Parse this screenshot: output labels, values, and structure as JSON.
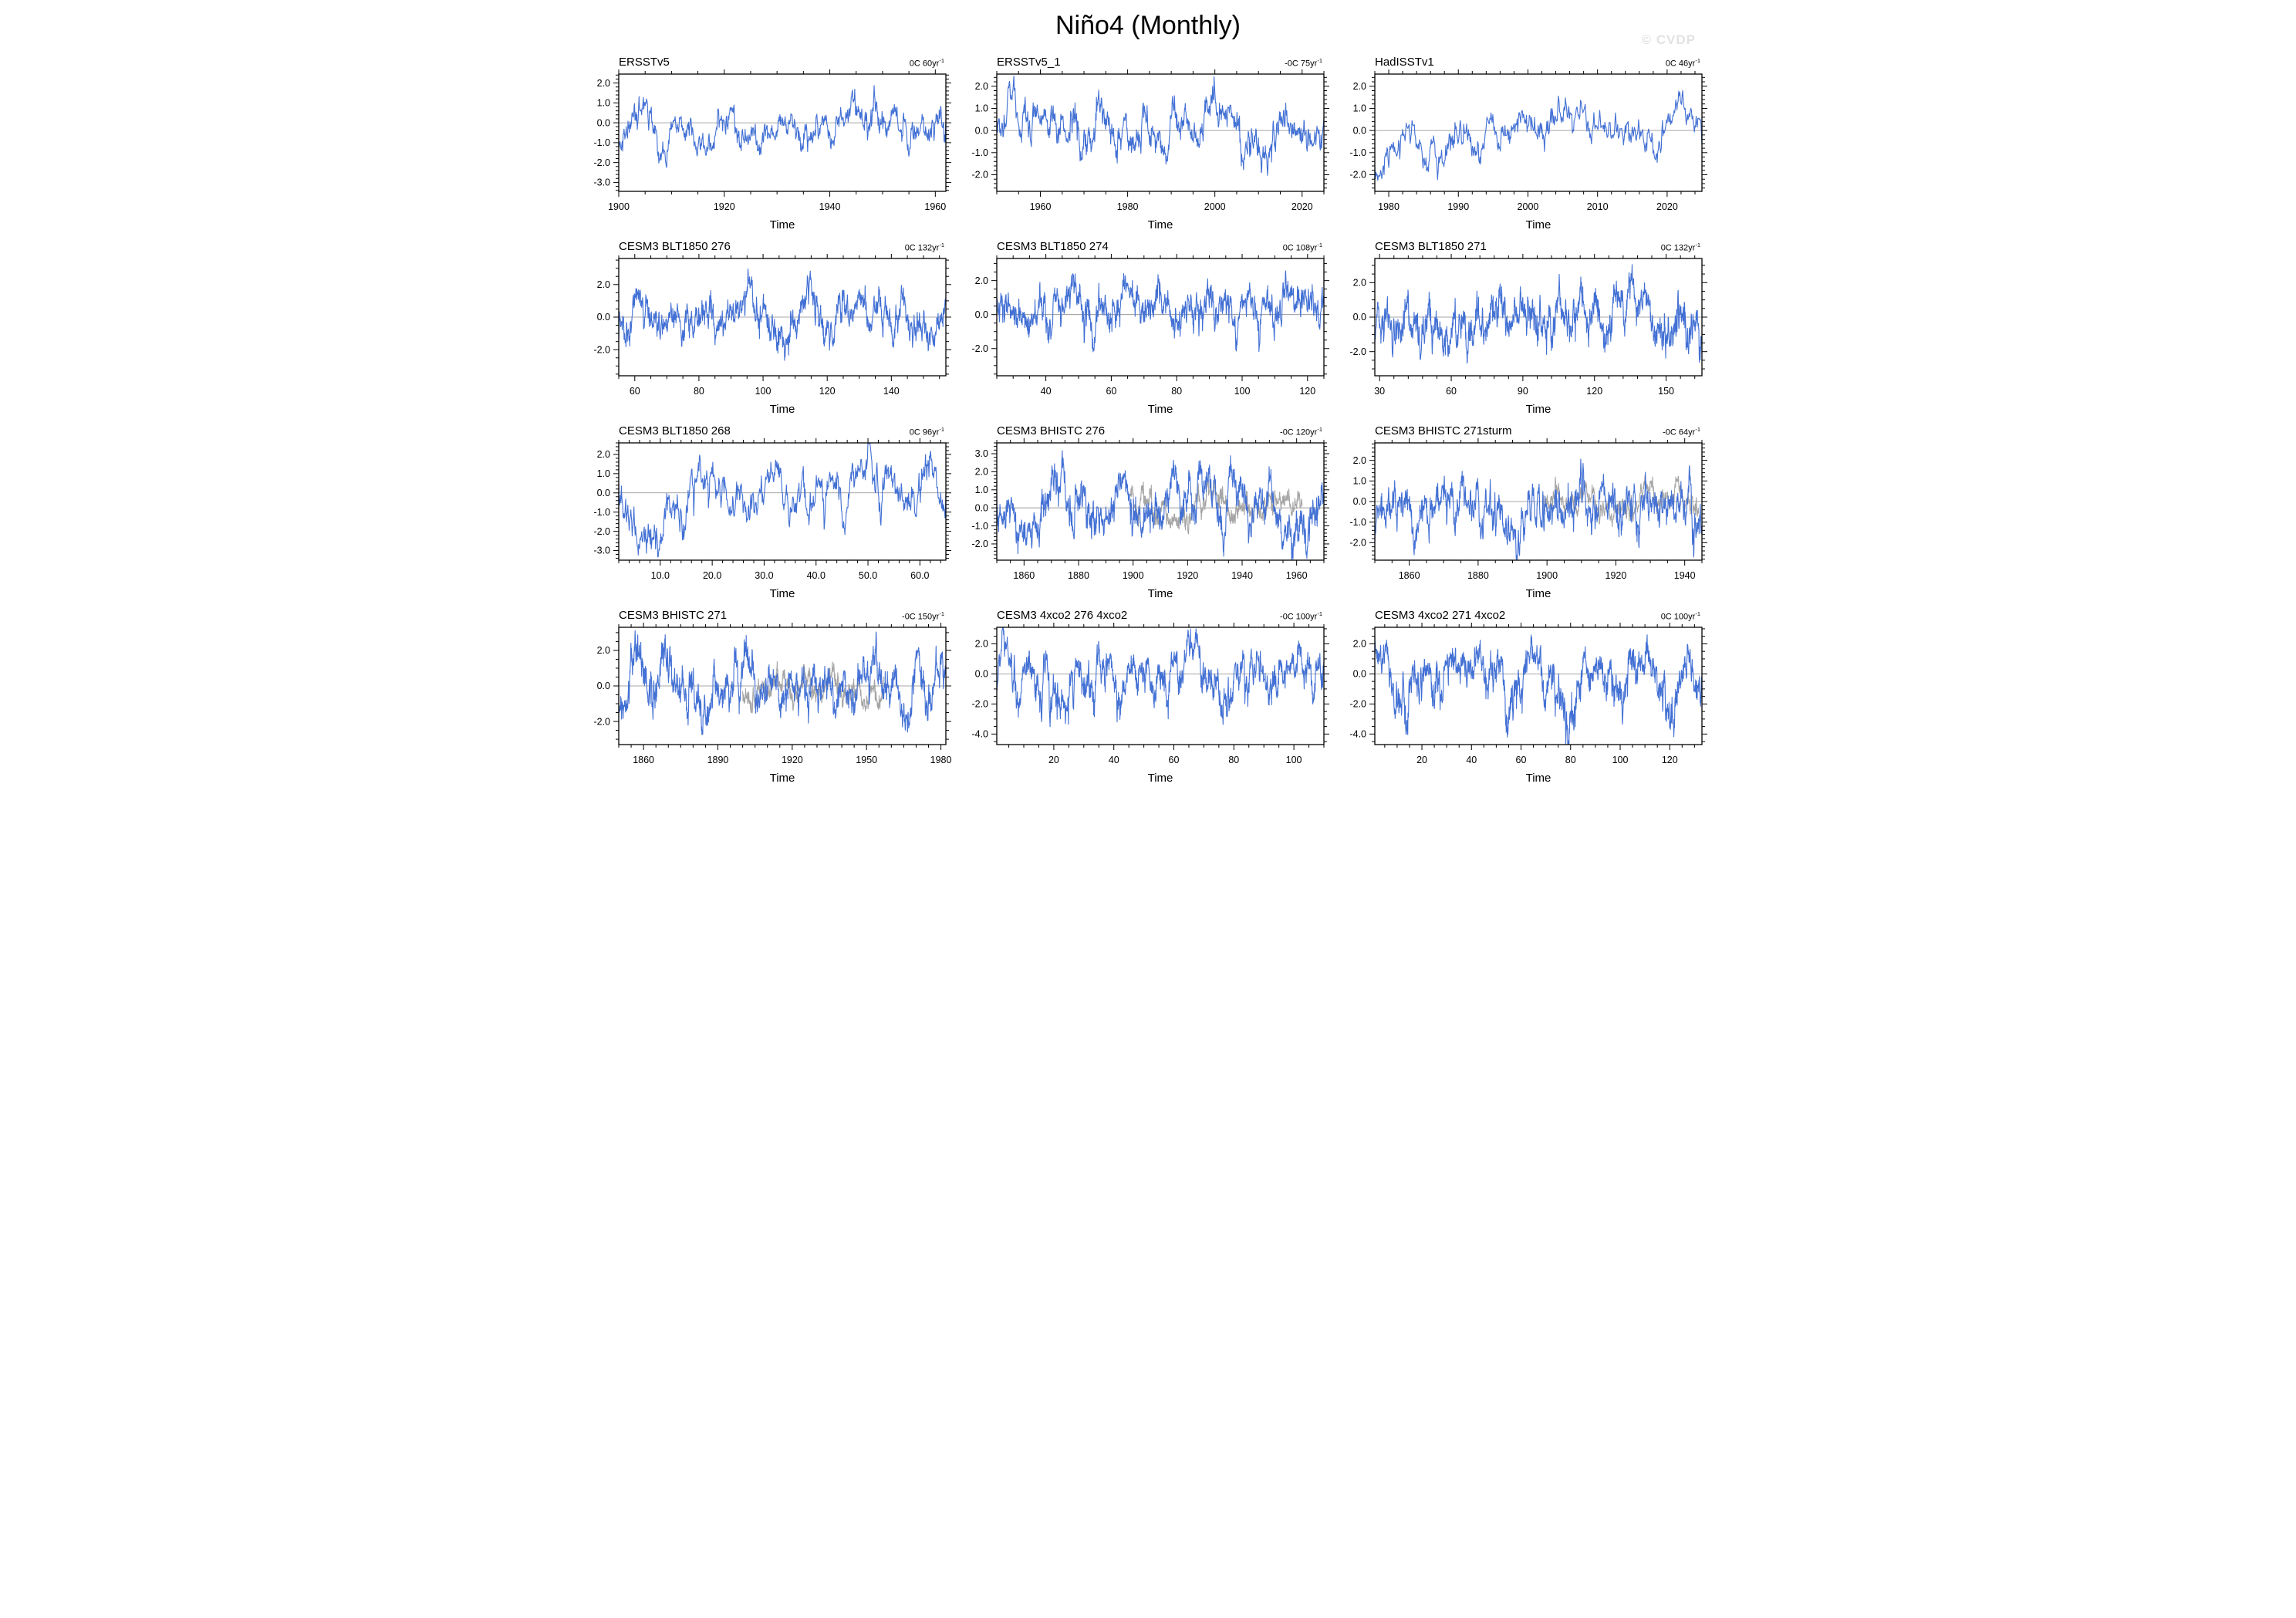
{
  "page": {
    "title": "Niño4 (Monthly)",
    "watermark": "© CVDP"
  },
  "colors": {
    "primary_line": "#4270d4",
    "secondary_line": "#a5a5a5",
    "zero_line": "#8a8a8a",
    "axis": "#000000",
    "watermark": "#e2e2e2"
  },
  "layout": {
    "grid_rows": 4,
    "grid_cols": 3,
    "gridlines": "off",
    "legend": "none"
  },
  "chart_data": [
    {
      "type": "line",
      "title": "ERSSTv5",
      "annotation": {
        "text": "0C 60yr",
        "sup": "-1"
      },
      "xlabel": "Time",
      "xlim": [
        1900,
        1962
      ],
      "x_minor_div": 4,
      "xticks": [
        {
          "v": 1900,
          "label": "1900"
        },
        {
          "v": 1920,
          "label": "1920"
        },
        {
          "v": 1940,
          "label": "1940"
        },
        {
          "v": 1960,
          "label": "1960"
        }
      ],
      "ylim": [
        -3.45,
        2.45
      ],
      "y_minor_div": 5,
      "yticks": [
        {
          "v": 2,
          "label": "2.0"
        },
        {
          "v": 1,
          "label": "1.0"
        },
        {
          "v": 0,
          "label": "0.0"
        },
        {
          "v": -1,
          "label": "-1.0"
        },
        {
          "v": -2,
          "label": "-2.0"
        },
        {
          "v": -3,
          "label": "-3.0"
        }
      ],
      "series": [
        {
          "name": "nino4-anomaly",
          "color": "primary_line",
          "seed": 101,
          "std": 0.72
        }
      ]
    },
    {
      "type": "line",
      "title": "ERSSTv5_1",
      "annotation": {
        "text": "-0C 75yr",
        "sup": "-1"
      },
      "xlabel": "Time",
      "xlim": [
        1950,
        2025
      ],
      "x_minor_div": 4,
      "xticks": [
        {
          "v": 1960,
          "label": "1960"
        },
        {
          "v": 1980,
          "label": "1980"
        },
        {
          "v": 2000,
          "label": "2000"
        },
        {
          "v": 2020,
          "label": "2020"
        }
      ],
      "ylim": [
        -2.75,
        2.55
      ],
      "y_minor_div": 5,
      "yticks": [
        {
          "v": 2,
          "label": "2.0"
        },
        {
          "v": 1,
          "label": "1.0"
        },
        {
          "v": 0,
          "label": "0.0"
        },
        {
          "v": -1,
          "label": "-1.0"
        },
        {
          "v": -2,
          "label": "-2.0"
        }
      ],
      "series": [
        {
          "name": "nino4-anomaly",
          "color": "primary_line",
          "seed": 202,
          "std": 0.72
        }
      ]
    },
    {
      "type": "line",
      "title": "HadISSTv1",
      "annotation": {
        "text": "0C 46yr",
        "sup": "-1"
      },
      "xlabel": "Time",
      "xlim": [
        1978,
        2025
      ],
      "x_minor_div": 5,
      "xticks": [
        {
          "v": 1980,
          "label": "1980"
        },
        {
          "v": 1990,
          "label": "1990"
        },
        {
          "v": 2000,
          "label": "2000"
        },
        {
          "v": 2010,
          "label": "2010"
        },
        {
          "v": 2020,
          "label": "2020"
        }
      ],
      "ylim": [
        -2.75,
        2.55
      ],
      "y_minor_div": 5,
      "yticks": [
        {
          "v": 2,
          "label": "2.0"
        },
        {
          "v": 1,
          "label": "1.0"
        },
        {
          "v": 0,
          "label": "0.0"
        },
        {
          "v": -1,
          "label": "-1.0"
        },
        {
          "v": -2,
          "label": "-2.0"
        }
      ],
      "series": [
        {
          "name": "nino4-anomaly",
          "color": "primary_line",
          "seed": 303,
          "std": 0.68
        }
      ]
    },
    {
      "type": "line",
      "title": "CESM3 BLT1850 276",
      "annotation": {
        "text": "0C 132yr",
        "sup": "-1"
      },
      "xlabel": "Time",
      "xlim": [
        55,
        157
      ],
      "x_minor_div": 4,
      "xticks": [
        {
          "v": 60,
          "label": "60"
        },
        {
          "v": 80,
          "label": "80"
        },
        {
          "v": 100,
          "label": "100"
        },
        {
          "v": 120,
          "label": "120"
        },
        {
          "v": 140,
          "label": "140"
        }
      ],
      "ylim": [
        -3.6,
        3.6
      ],
      "y_minor_div": 4,
      "yticks": [
        {
          "v": 2,
          "label": "2.0"
        },
        {
          "v": 0,
          "label": "0.0"
        },
        {
          "v": -2,
          "label": "-2.0"
        }
      ],
      "series": [
        {
          "name": "nino4-anomaly",
          "color": "primary_line",
          "seed": 404,
          "std": 1.0
        }
      ]
    },
    {
      "type": "line",
      "title": "CESM3 BLT1850 274",
      "annotation": {
        "text": "0C 108yr",
        "sup": "-1"
      },
      "xlabel": "Time",
      "xlim": [
        25,
        125
      ],
      "x_minor_div": 4,
      "xticks": [
        {
          "v": 40,
          "label": "40"
        },
        {
          "v": 60,
          "label": "60"
        },
        {
          "v": 80,
          "label": "80"
        },
        {
          "v": 100,
          "label": "100"
        },
        {
          "v": 120,
          "label": "120"
        }
      ],
      "ylim": [
        -3.6,
        3.3
      ],
      "y_minor_div": 4,
      "yticks": [
        {
          "v": 2,
          "label": "2.0"
        },
        {
          "v": 0,
          "label": "0.0"
        },
        {
          "v": -2,
          "label": "-2.0"
        }
      ],
      "series": [
        {
          "name": "nino4-anomaly",
          "color": "primary_line",
          "seed": 505,
          "std": 1.0
        }
      ]
    },
    {
      "type": "line",
      "title": "CESM3 BLT1850 271",
      "annotation": {
        "text": "0C 132yr",
        "sup": "-1"
      },
      "xlabel": "Time",
      "xlim": [
        28,
        165
      ],
      "x_minor_div": 5,
      "xticks": [
        {
          "v": 30,
          "label": "30"
        },
        {
          "v": 60,
          "label": "60"
        },
        {
          "v": 90,
          "label": "90"
        },
        {
          "v": 120,
          "label": "120"
        },
        {
          "v": 150,
          "label": "150"
        }
      ],
      "ylim": [
        -3.4,
        3.4
      ],
      "y_minor_div": 4,
      "yticks": [
        {
          "v": 2,
          "label": "2.0"
        },
        {
          "v": 0,
          "label": "0.0"
        },
        {
          "v": -2,
          "label": "-2.0"
        }
      ],
      "series": [
        {
          "name": "nino4-anomaly",
          "color": "primary_line",
          "seed": 606,
          "std": 1.0
        }
      ]
    },
    {
      "type": "line",
      "title": "CESM3 BLT1850 268",
      "annotation": {
        "text": "0C 96yr",
        "sup": "-1"
      },
      "xlabel": "Time",
      "xlim": [
        2,
        65
      ],
      "x_minor_div": 5,
      "xticks": [
        {
          "v": 10,
          "label": "10.0"
        },
        {
          "v": 20,
          "label": "20.0"
        },
        {
          "v": 30,
          "label": "30.0"
        },
        {
          "v": 40,
          "label": "40.0"
        },
        {
          "v": 50,
          "label": "50.0"
        },
        {
          "v": 60,
          "label": "60.0"
        }
      ],
      "ylim": [
        -3.5,
        2.6
      ],
      "y_minor_div": 5,
      "yticks": [
        {
          "v": 2,
          "label": "2.0"
        },
        {
          "v": 1,
          "label": "1.0"
        },
        {
          "v": 0,
          "label": "0.0"
        },
        {
          "v": -1,
          "label": "-1.0"
        },
        {
          "v": -2,
          "label": "-2.0"
        },
        {
          "v": -3,
          "label": "-3.0"
        }
      ],
      "series": [
        {
          "name": "nino4-anomaly",
          "color": "primary_line",
          "seed": 707,
          "std": 0.95
        }
      ]
    },
    {
      "type": "line",
      "title": "CESM3 BHISTC 276",
      "annotation": {
        "text": "-0C 120yr",
        "sup": "-1"
      },
      "xlabel": "Time",
      "xlim": [
        1850,
        1970
      ],
      "x_minor_div": 4,
      "xticks": [
        {
          "v": 1860,
          "label": "1860"
        },
        {
          "v": 1880,
          "label": "1880"
        },
        {
          "v": 1900,
          "label": "1900"
        },
        {
          "v": 1920,
          "label": "1920"
        },
        {
          "v": 1940,
          "label": "1940"
        },
        {
          "v": 1960,
          "label": "1960"
        }
      ],
      "ylim": [
        -2.9,
        3.6
      ],
      "y_minor_div": 5,
      "yticks": [
        {
          "v": 3,
          "label": "3.0"
        },
        {
          "v": 2,
          "label": "2.0"
        },
        {
          "v": 1,
          "label": "1.0"
        },
        {
          "v": 0,
          "label": "0.0"
        },
        {
          "v": -1,
          "label": "-1.0"
        },
        {
          "v": -2,
          "label": "-2.0"
        }
      ],
      "series": [
        {
          "name": "model-member",
          "color": "primary_line",
          "seed": 808,
          "std": 0.95
        },
        {
          "name": "observation-overlay",
          "color": "secondary_line",
          "seed": 818,
          "std": 0.6,
          "xrange": [
            1899,
            1962
          ]
        }
      ]
    },
    {
      "type": "line",
      "title": "CESM3 BHISTC 271sturm",
      "annotation": {
        "text": "-0C 64yr",
        "sup": "-1"
      },
      "xlabel": "Time",
      "xlim": [
        1850,
        1945
      ],
      "x_minor_div": 4,
      "xticks": [
        {
          "v": 1860,
          "label": "1860"
        },
        {
          "v": 1880,
          "label": "1880"
        },
        {
          "v": 1900,
          "label": "1900"
        },
        {
          "v": 1920,
          "label": "1920"
        },
        {
          "v": 1940,
          "label": "1940"
        }
      ],
      "ylim": [
        -2.85,
        2.85
      ],
      "y_minor_div": 5,
      "yticks": [
        {
          "v": 2,
          "label": "2.0"
        },
        {
          "v": 1,
          "label": "1.0"
        },
        {
          "v": 0,
          "label": "0.0"
        },
        {
          "v": -1,
          "label": "-1.0"
        },
        {
          "v": -2,
          "label": "-2.0"
        }
      ],
      "series": [
        {
          "name": "model-member",
          "color": "primary_line",
          "seed": 909,
          "std": 0.95
        },
        {
          "name": "observation-overlay",
          "color": "secondary_line",
          "seed": 919,
          "std": 0.55,
          "xrange": [
            1899,
            1944
          ]
        }
      ]
    },
    {
      "type": "line",
      "title": "CESM3 BHISTC 271",
      "annotation": {
        "text": "-0C 150yr",
        "sup": "-1"
      },
      "xlabel": "Time",
      "xlim": [
        1850,
        1982
      ],
      "x_minor_div": 6,
      "xticks": [
        {
          "v": 1860,
          "label": "1860"
        },
        {
          "v": 1890,
          "label": "1890"
        },
        {
          "v": 1920,
          "label": "1920"
        },
        {
          "v": 1950,
          "label": "1950"
        },
        {
          "v": 1980,
          "label": "1980"
        }
      ],
      "ylim": [
        -3.3,
        3.3
      ],
      "y_minor_div": 4,
      "yticks": [
        {
          "v": 2,
          "label": "2.0"
        },
        {
          "v": 0,
          "label": "0.0"
        },
        {
          "v": -2,
          "label": "-2.0"
        }
      ],
      "series": [
        {
          "name": "model-member",
          "color": "primary_line",
          "seed": 111,
          "std": 0.95
        },
        {
          "name": "observation-overlay",
          "color": "secondary_line",
          "seed": 121,
          "std": 0.55,
          "xrange": [
            1900,
            1957
          ]
        }
      ]
    },
    {
      "type": "line",
      "title": "CESM3 4xco2 276 4xco2",
      "annotation": {
        "text": "-0C 100yr",
        "sup": "-1"
      },
      "xlabel": "Time",
      "xlim": [
        1,
        110
      ],
      "x_minor_div": 4,
      "xticks": [
        {
          "v": 20,
          "label": "20"
        },
        {
          "v": 40,
          "label": "40"
        },
        {
          "v": 60,
          "label": "60"
        },
        {
          "v": 80,
          "label": "80"
        },
        {
          "v": 100,
          "label": "100"
        }
      ],
      "ylim": [
        -4.7,
        3.1
      ],
      "y_minor_div": 4,
      "yticks": [
        {
          "v": 2,
          "label": "2.0"
        },
        {
          "v": 0,
          "label": "0.0"
        },
        {
          "v": -2,
          "label": "-2.0"
        },
        {
          "v": -4,
          "label": "-4.0"
        }
      ],
      "series": [
        {
          "name": "nino4-anomaly",
          "color": "primary_line",
          "seed": 131,
          "std": 1.0,
          "neg_gain": 1.35
        }
      ]
    },
    {
      "type": "line",
      "title": "CESM3 4xco2 271 4xco2",
      "annotation": {
        "text": "0C 100yr",
        "sup": "-1"
      },
      "xlabel": "Time",
      "xlim": [
        1,
        133
      ],
      "x_minor_div": 4,
      "xticks": [
        {
          "v": 20,
          "label": "20"
        },
        {
          "v": 40,
          "label": "40"
        },
        {
          "v": 60,
          "label": "60"
        },
        {
          "v": 80,
          "label": "80"
        },
        {
          "v": 100,
          "label": "100"
        },
        {
          "v": 120,
          "label": "120"
        }
      ],
      "ylim": [
        -4.7,
        3.1
      ],
      "y_minor_div": 4,
      "yticks": [
        {
          "v": 2,
          "label": "2.0"
        },
        {
          "v": 0,
          "label": "0.0"
        },
        {
          "v": -2,
          "label": "-2.0"
        },
        {
          "v": -4,
          "label": "-4.0"
        }
      ],
      "series": [
        {
          "name": "nino4-anomaly",
          "color": "primary_line",
          "seed": 141,
          "std": 1.0,
          "neg_gain": 1.35
        }
      ]
    }
  ]
}
